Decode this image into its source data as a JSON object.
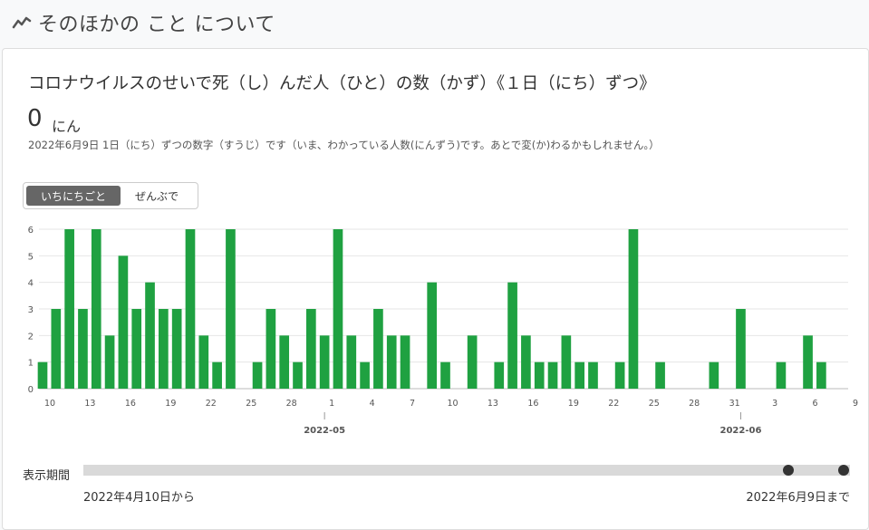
{
  "header": {
    "title": "そのほかの こと について",
    "icon": "trend-line-icon"
  },
  "card": {
    "title": "コロナウイルスのせいで死（し）んだ人（ひと）の数（かず）《１日（にち）ずつ》",
    "value": "0",
    "unit": "にん",
    "note": "2022年6月9日 1日（にち）ずつの数字（すうじ）です（いま、わかっている人数(にんずう)です。あとで変(か)わるかもしれません。）"
  },
  "toggle": {
    "daily": "いちにちごと",
    "cumulative": "ぜんぶで"
  },
  "chart_data": {
    "type": "bar",
    "bar_color": "#1fa141",
    "ylim": [
      0,
      6
    ],
    "y_ticks": [
      0,
      1,
      2,
      3,
      4,
      5,
      6
    ],
    "x_tick_labels": [
      "10",
      "13",
      "16",
      "19",
      "22",
      "25",
      "28",
      "1",
      "4",
      "7",
      "10",
      "13",
      "16",
      "19",
      "22",
      "25",
      "28",
      "31",
      "3",
      "6",
      "9"
    ],
    "month_labels": [
      "2022-05",
      "2022-06"
    ],
    "categories": [
      "4/10",
      "4/11",
      "4/12",
      "4/13",
      "4/14",
      "4/15",
      "4/16",
      "4/17",
      "4/18",
      "4/19",
      "4/20",
      "4/21",
      "4/22",
      "4/23",
      "4/24",
      "4/25",
      "4/26",
      "4/27",
      "4/28",
      "4/29",
      "4/30",
      "5/1",
      "5/2",
      "5/3",
      "5/4",
      "5/5",
      "5/6",
      "5/7",
      "5/8",
      "5/9",
      "5/10",
      "5/11",
      "5/12",
      "5/13",
      "5/14",
      "5/15",
      "5/16",
      "5/17",
      "5/18",
      "5/19",
      "5/20",
      "5/21",
      "5/22",
      "5/23",
      "5/24",
      "5/25",
      "5/26",
      "5/27",
      "5/28",
      "5/29",
      "5/30",
      "5/31",
      "6/1",
      "6/2",
      "6/3",
      "6/4",
      "6/5",
      "6/6",
      "6/7",
      "6/8",
      "6/9"
    ],
    "values": [
      1,
      3,
      6,
      3,
      6,
      2,
      5,
      3,
      4,
      3,
      3,
      6,
      2,
      1,
      6,
      0,
      1,
      3,
      2,
      1,
      3,
      2,
      6,
      2,
      1,
      3,
      2,
      2,
      0,
      4,
      1,
      0,
      2,
      0,
      1,
      4,
      2,
      1,
      1,
      2,
      1,
      1,
      0,
      1,
      6,
      0,
      1,
      0,
      0,
      0,
      1,
      0,
      3,
      0,
      0,
      1,
      0,
      2,
      1,
      0,
      0
    ]
  },
  "period": {
    "label": "表示期間",
    "start": "2022年4月10日から",
    "end": "2022年6月9日まで"
  }
}
